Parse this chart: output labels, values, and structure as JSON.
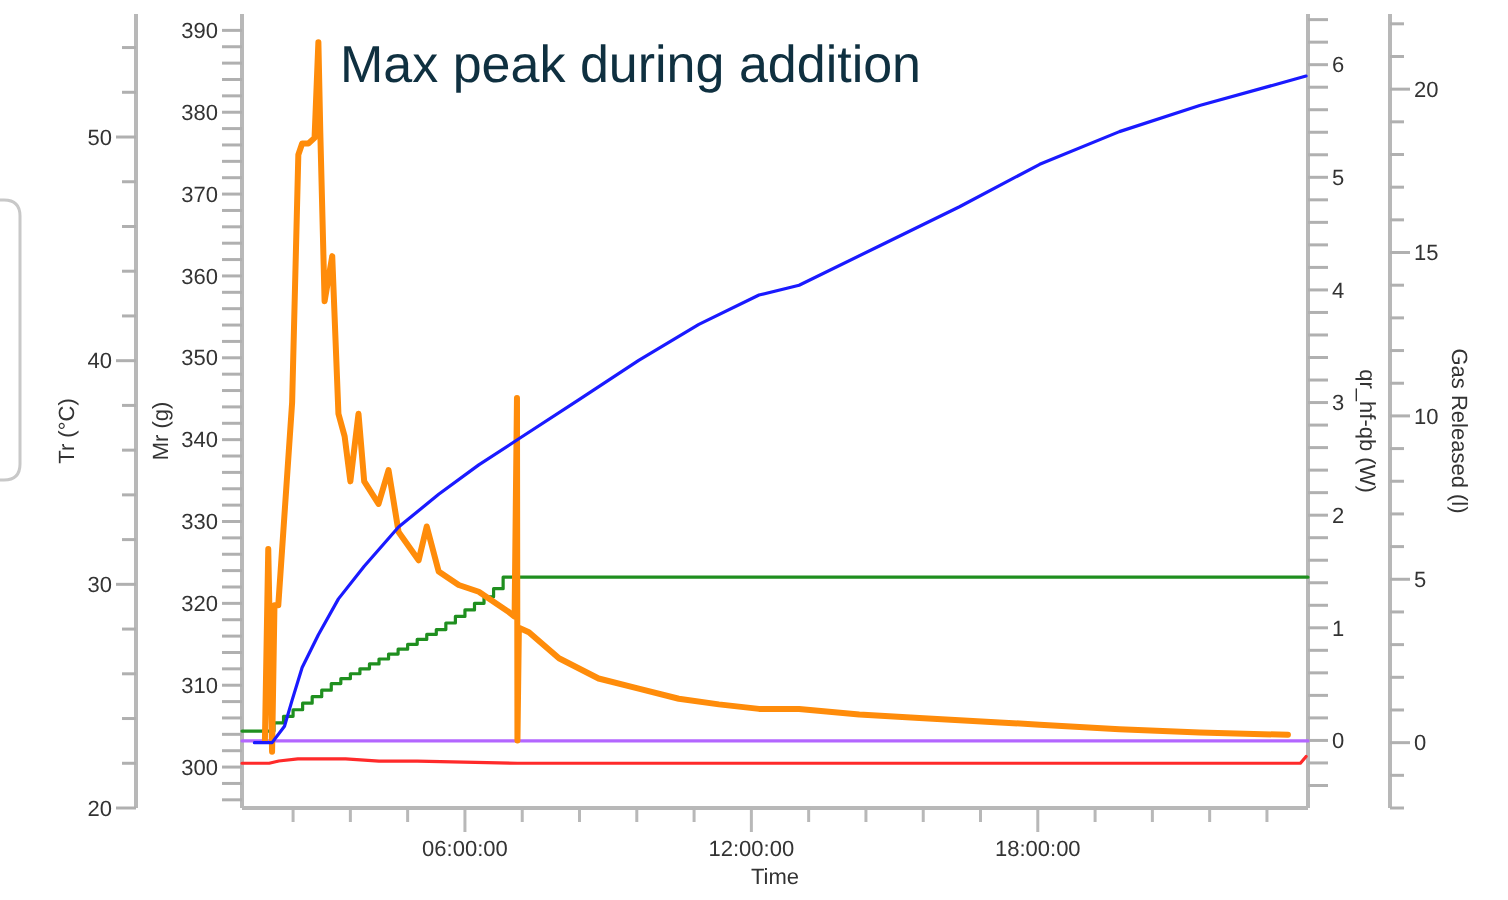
{
  "chart_data": [
    {
      "type": "line",
      "title": "Max peak during addition",
      "xlabel": "Time",
      "ylabel": "Mr (g)",
      "y2label": "qr_hf-qb (W)",
      "y3label": "Tr (°C)",
      "xlim": [
        1.33,
        23.66
      ],
      "xticks": [
        {
          "value": 2.4,
          "label": null
        },
        {
          "value": 3.6,
          "label": null
        },
        {
          "value": 4.8,
          "label": null
        },
        {
          "value": 6,
          "label": "06:00:00"
        },
        {
          "value": 7.2,
          "label": null
        },
        {
          "value": 8.4,
          "label": null
        },
        {
          "value": 9.6,
          "label": null
        },
        {
          "value": 10.8,
          "label": null
        },
        {
          "value": 12,
          "label": "12:00:00"
        },
        {
          "value": 13.2,
          "label": null
        },
        {
          "value": 14.4,
          "label": null
        },
        {
          "value": 15.6,
          "label": null
        },
        {
          "value": 16.8,
          "label": null
        },
        {
          "value": 18,
          "label": "18:00:00"
        },
        {
          "value": 19.2,
          "label": null
        },
        {
          "value": 20.4,
          "label": null
        },
        {
          "value": 21.6,
          "label": null
        },
        {
          "value": 22.8,
          "label": null
        }
      ],
      "ylim": [
        295,
        392
      ],
      "yticks": [
        {
          "value": 296,
          "label": null
        },
        {
          "value": 298,
          "label": null
        },
        300,
        {
          "value": 302,
          "label": null
        },
        {
          "value": 304,
          "label": null
        },
        {
          "value": 306,
          "label": null
        },
        {
          "value": 308,
          "label": null
        },
        310,
        {
          "value": 312,
          "label": null
        },
        {
          "value": 314,
          "label": null
        },
        {
          "value": 316,
          "label": null
        },
        {
          "value": 318,
          "label": null
        },
        320,
        {
          "value": 322,
          "label": null
        },
        {
          "value": 324,
          "label": null
        },
        {
          "value": 326,
          "label": null
        },
        {
          "value": 328,
          "label": null
        },
        330,
        {
          "value": 332,
          "label": null
        },
        {
          "value": 334,
          "label": null
        },
        {
          "value": 336,
          "label": null
        },
        {
          "value": 338,
          "label": null
        },
        340,
        {
          "value": 342,
          "label": null
        },
        {
          "value": 344,
          "label": null
        },
        {
          "value": 346,
          "label": null
        },
        {
          "value": 348,
          "label": null
        },
        350,
        {
          "value": 352,
          "label": null
        },
        {
          "value": 354,
          "label": null
        },
        {
          "value": 356,
          "label": null
        },
        {
          "value": 358,
          "label": null
        },
        360,
        {
          "value": 362,
          "label": null
        },
        {
          "value": 364,
          "label": null
        },
        {
          "value": 366,
          "label": null
        },
        {
          "value": 368,
          "label": null
        },
        370,
        {
          "value": 372,
          "label": null
        },
        {
          "value": 374,
          "label": null
        },
        {
          "value": 376,
          "label": null
        },
        {
          "value": 378,
          "label": null
        },
        380,
        {
          "value": 382,
          "label": null
        },
        {
          "value": 384,
          "label": null
        },
        {
          "value": 386,
          "label": null
        },
        {
          "value": 388,
          "label": null
        },
        390
      ],
      "y2lim": [
        -0.6,
        6.45
      ],
      "y2ticks": [
        {
          "value": -0.4,
          "label": null
        },
        {
          "value": -0.2,
          "label": null
        },
        0,
        {
          "value": 0.2,
          "label": null
        },
        {
          "value": 0.4,
          "label": null
        },
        {
          "value": 0.6,
          "label": null
        },
        {
          "value": 0.8,
          "label": null
        },
        1,
        {
          "value": 1.2,
          "label": null
        },
        {
          "value": 1.4,
          "label": null
        },
        {
          "value": 1.6,
          "label": null
        },
        {
          "value": 1.8,
          "label": null
        },
        2,
        {
          "value": 2.2,
          "label": null
        },
        {
          "value": 2.4,
          "label": null
        },
        {
          "value": 2.6,
          "label": null
        },
        {
          "value": 2.8,
          "label": null
        },
        3,
        {
          "value": 3.2,
          "label": null
        },
        {
          "value": 3.4,
          "label": null
        },
        {
          "value": 3.6,
          "label": null
        },
        {
          "value": 3.8,
          "label": null
        },
        4,
        {
          "value": 4.2,
          "label": null
        },
        {
          "value": 4.4,
          "label": null
        },
        {
          "value": 4.6,
          "label": null
        },
        {
          "value": 4.8,
          "label": null
        },
        5,
        {
          "value": 5.2,
          "label": null
        },
        {
          "value": 5.4,
          "label": null
        },
        {
          "value": 5.6,
          "label": null
        },
        {
          "value": 5.8,
          "label": null
        },
        6,
        {
          "value": 6.2,
          "label": null
        },
        {
          "value": 6.4,
          "label": null
        }
      ],
      "y3lim": [
        20,
        55.5
      ],
      "y3ticks": [
        20,
        30,
        40,
        50
      ],
      "grid": false,
      "marker": "none",
      "series": [
        {
          "axis": "y3",
          "color": "#b366ff",
          "x": [
            1.33,
            23.66
          ],
          "values": [
            23.0,
            23.0
          ]
        },
        {
          "axis": "y3",
          "color": "#ff2a2a",
          "x": [
            1.33,
            1.9,
            2.1,
            2.5,
            3.5,
            4.2,
            5.0,
            7.1,
            10.0,
            23.5,
            23.62
          ],
          "values": [
            22.0,
            22.0,
            22.1,
            22.2,
            22.2,
            22.1,
            22.1,
            22.0,
            22.0,
            22.0,
            22.3
          ]
        },
        {
          "type": "step",
          "color": "#1f8f1f",
          "x": [
            1.33,
            2.0,
            2.2,
            2.4,
            2.6,
            2.8,
            3.0,
            3.2,
            3.4,
            3.6,
            3.8,
            4.0,
            4.2,
            4.4,
            4.6,
            4.8,
            5.0,
            5.2,
            5.4,
            5.6,
            5.8,
            6.0,
            6.2,
            6.4,
            6.6,
            6.8,
            23.66
          ],
          "values": [
            304.4,
            305.4,
            306.2,
            307.0,
            307.8,
            308.6,
            309.4,
            310.2,
            310.8,
            311.4,
            312.0,
            312.6,
            313.2,
            313.8,
            314.4,
            315.0,
            315.6,
            316.2,
            316.8,
            317.6,
            318.4,
            319.2,
            320.0,
            320.8,
            321.8,
            323.2,
            323.2
          ]
        },
        {
          "axis": "y2",
          "color": "#ff8c0a",
          "x": [
            1.81,
            1.88,
            1.96,
            2.01,
            2.09,
            2.38,
            2.51,
            2.59,
            2.72,
            2.85,
            2.93,
            2.97,
            3.06,
            3.22,
            3.35,
            3.48,
            3.6,
            3.77,
            3.89,
            4.19,
            4.4,
            4.61,
            5.03,
            5.2,
            5.45,
            5.87,
            6.29,
            6.92,
            7.04,
            7.09,
            7.1,
            7.13,
            7.34,
            7.97,
            8.8,
            9.64,
            10.48,
            11.32,
            12.16,
            13.0,
            14.26,
            15.52,
            17.2,
            18.04,
            19.71,
            21.39,
            23.24
          ],
          "values": [
            0,
            1.7,
            -0.1,
            1.2,
            1.2,
            3.0,
            5.2,
            5.3,
            5.3,
            5.35,
            6.2,
            5.4,
            3.9,
            4.3,
            2.9,
            2.7,
            2.3,
            2.9,
            2.3,
            2.1,
            2.4,
            1.85,
            1.6,
            1.9,
            1.5,
            1.38,
            1.32,
            1.14,
            1.1,
            3.04,
            0,
            1.0,
            0.96,
            0.73,
            0.55,
            0.46,
            0.37,
            0.32,
            0.28,
            0.28,
            0.23,
            0.2,
            0.16,
            0.14,
            0.1,
            0.07,
            0.05
          ]
        }
      ]
    },
    {
      "type": "line",
      "ylabel": "Gas Released (l)",
      "xlim": [
        1.33,
        23.66
      ],
      "tick_labels": "y",
      "ylim": [
        -2,
        22.3
      ],
      "yticks": [
        0,
        5,
        10,
        15,
        20
      ],
      "series": [
        {
          "color": "#1a1aff",
          "x": [
            1.59,
            1.96,
            2.22,
            2.38,
            2.59,
            2.93,
            3.35,
            3.89,
            4.61,
            5.45,
            6.29,
            7.13,
            8.39,
            9.64,
            10.9,
            12.16,
            13.0,
            14.68,
            16.36,
            18.04,
            19.71,
            21.39,
            23.62
          ],
          "values": [
            0,
            0,
            0.5,
            1.3,
            2.3,
            3.3,
            4.4,
            5.4,
            6.6,
            7.6,
            8.5,
            9.3,
            10.5,
            11.7,
            12.8,
            13.7,
            14.0,
            15.2,
            16.4,
            17.7,
            18.7,
            19.5,
            20.4
          ]
        }
      ]
    }
  ]
}
